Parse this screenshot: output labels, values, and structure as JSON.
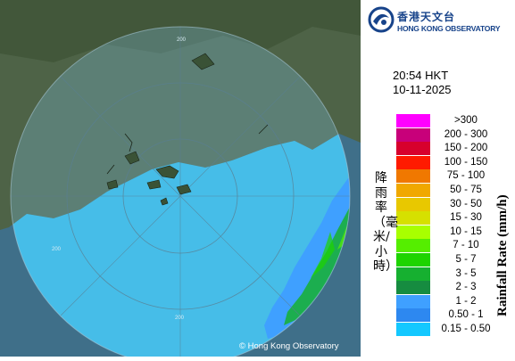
{
  "radar": {
    "time": "20:54 HKT",
    "date": "10-11-2025",
    "range_labels": [
      "200",
      "200",
      "200"
    ],
    "copyright": "© Hong Kong Observatory"
  },
  "branding": {
    "name_cn": "香港天文台",
    "name_en": "HONG KONG OBSERVATORY",
    "color": "#17438a"
  },
  "legend": {
    "title_en": "Rainfall Rate (mm/h)",
    "title_cn": "降雨率（毫米/小時）",
    "items": [
      {
        "label": ">300",
        "color": "#ff00ff"
      },
      {
        "label": "200 - 300",
        "color": "#c8007a"
      },
      {
        "label": "150 - 200",
        "color": "#d7002d"
      },
      {
        "label": "100 - 150",
        "color": "#ff1a00"
      },
      {
        "label": "75 - 100",
        "color": "#f07800"
      },
      {
        "label": "50 - 75",
        "color": "#f0a800"
      },
      {
        "label": "30 - 50",
        "color": "#e8c800"
      },
      {
        "label": "15 - 30",
        "color": "#d6e000"
      },
      {
        "label": "10 - 15",
        "color": "#a8ff00"
      },
      {
        "label": "7 - 10",
        "color": "#55ee00"
      },
      {
        "label": "5 - 7",
        "color": "#1ed400"
      },
      {
        "label": "3 - 5",
        "color": "#16b030"
      },
      {
        "label": "2 - 3",
        "color": "#168c40"
      },
      {
        "label": "1 - 2",
        "color": "#3fa0ff"
      },
      {
        "label": "0.50 - 1",
        "color": "#2d88f0"
      },
      {
        "label": "0.15 - 0.50",
        "color": "#14c8ff"
      }
    ]
  }
}
